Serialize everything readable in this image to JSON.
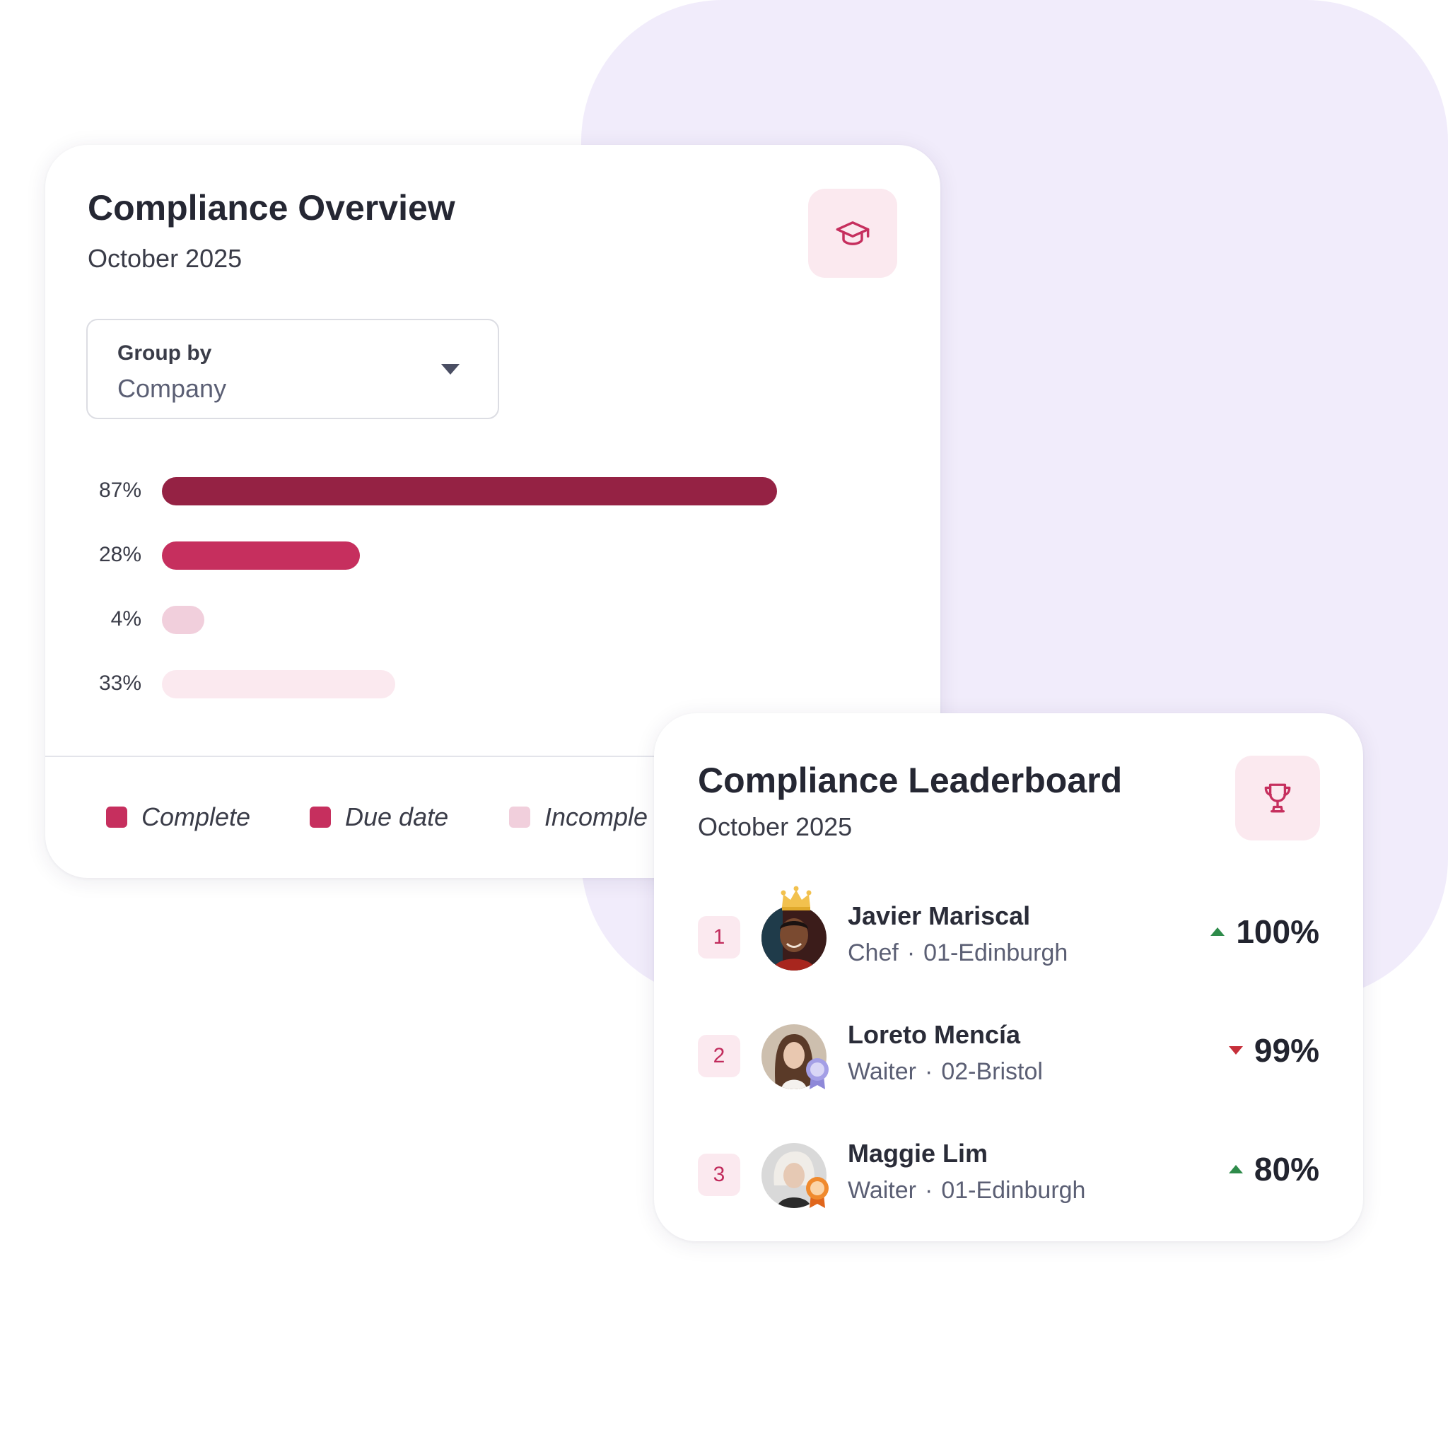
{
  "overview": {
    "title": "Compliance Overview",
    "period": "October 2025",
    "icon": "graduation-cap-icon",
    "group_by": {
      "label": "Group by",
      "value": "Company"
    },
    "legend": [
      {
        "label": "Complete",
        "color": "#c62f5e"
      },
      {
        "label": "Due date",
        "color": "#c62f5e"
      },
      {
        "label": "Incomple",
        "color": "#f1cfdc"
      }
    ]
  },
  "chart_data": {
    "type": "bar",
    "orientation": "horizontal",
    "values": [
      87,
      28,
      4,
      33
    ],
    "value_labels": [
      "87%",
      "28%",
      "4%",
      "33%"
    ],
    "colors": [
      "#952244",
      "#c62f5e",
      "#f1cfdc",
      "#fbe9ef"
    ],
    "xlim": [
      0,
      100
    ]
  },
  "leaderboard": {
    "title": "Compliance Leaderboard",
    "period": "October 2025",
    "icon": "trophy-icon",
    "rows": [
      {
        "rank": "1",
        "name": "Javier Mariscal",
        "role": "Chef",
        "location": "01-Edinburgh",
        "score": "100%",
        "trend": "up",
        "badge": "crown-icon"
      },
      {
        "rank": "2",
        "name": "Loreto Mencía",
        "role": "Waiter",
        "location": "02-Bristol",
        "score": "99%",
        "trend": "down",
        "badge": "silver-medal-icon"
      },
      {
        "rank": "3",
        "name": "Maggie Lim",
        "role": "Waiter",
        "location": "01-Edinburgh",
        "score": "80%",
        "trend": "up",
        "badge": "bronze-medal-icon"
      }
    ],
    "separator": "·"
  },
  "colors": {
    "accent": "#c62f5e",
    "accent_dark": "#952244",
    "tile_bg": "#fbe9ef",
    "background_blob": "#f1ecfb",
    "trend_up": "#2e8b4a",
    "trend_down": "#c62f3a"
  }
}
